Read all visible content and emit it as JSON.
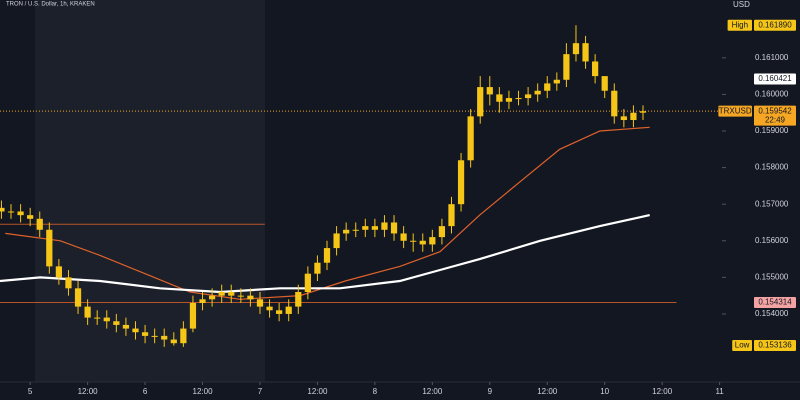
{
  "chart_data": {
    "type": "candlestick",
    "title": "TRON / U.S. Dollar, 1h, KRAKEN",
    "y_axis_label": "USD",
    "color": "#f5c518",
    "x": [
      -6,
      -4,
      -2,
      0,
      2,
      4,
      6,
      8,
      10,
      12,
      14,
      16,
      18,
      20,
      22,
      24,
      26,
      28,
      30,
      32,
      34,
      36,
      38,
      40,
      42,
      44,
      46,
      48,
      50,
      52,
      54,
      56,
      58,
      60,
      62,
      64,
      66,
      68,
      70,
      72,
      74,
      76,
      78,
      80,
      82,
      84,
      86,
      88,
      90,
      92,
      94,
      96,
      98,
      100,
      102,
      104,
      106,
      108,
      110,
      112,
      114,
      116,
      118,
      120,
      122,
      124,
      126,
      128
    ],
    "open": [
      0.1569,
      0.1568,
      0.1568,
      0.1567,
      0.1566,
      0.1563,
      0.1553,
      0.155,
      0.1547,
      0.1542,
      0.1539,
      0.1539,
      0.1538,
      0.1537,
      0.1536,
      0.1535,
      0.1534,
      0.1534,
      0.1533,
      0.1532,
      0.1536,
      0.1543,
      0.1544,
      0.1545,
      0.1546,
      0.1545,
      0.1545,
      0.1544,
      0.1542,
      0.1541,
      0.154,
      0.1542,
      0.1546,
      0.1551,
      0.1554,
      0.1558,
      0.1562,
      0.1563,
      0.1563,
      0.1564,
      0.1563,
      0.1565,
      0.1562,
      0.156,
      0.156,
      0.1559,
      0.1561,
      0.1564,
      0.157,
      0.1582,
      0.1594,
      0.1602,
      0.16,
      0.1598,
      0.1599,
      0.1599,
      0.16,
      0.1601,
      0.1603,
      0.1604,
      0.1611,
      0.1614,
      0.1609,
      0.1605,
      0.1601,
      0.1594,
      0.1593,
      0.1595
    ],
    "high": [
      0.1571,
      0.157,
      0.157,
      0.1569,
      0.1568,
      0.1565,
      0.1555,
      0.1552,
      0.1549,
      0.1544,
      0.1541,
      0.1541,
      0.154,
      0.1539,
      0.1538,
      0.1537,
      0.1536,
      0.1536,
      0.1535,
      0.1538,
      0.1545,
      0.1546,
      0.1547,
      0.1548,
      0.1548,
      0.1547,
      0.1547,
      0.1546,
      0.1544,
      0.1543,
      0.1544,
      0.1548,
      0.1553,
      0.1556,
      0.156,
      0.1564,
      0.1565,
      0.1565,
      0.1566,
      0.1566,
      0.1567,
      0.1567,
      0.1564,
      0.1562,
      0.1562,
      0.1563,
      0.1566,
      0.1572,
      0.1584,
      0.1596,
      0.1605,
      0.1605,
      0.1602,
      0.1601,
      0.1601,
      0.1602,
      0.1603,
      0.1605,
      0.1606,
      0.1614,
      0.16189,
      0.1616,
      0.1611,
      0.1604,
      0.1603,
      0.1596,
      0.1597,
      0.1597
    ],
    "low": [
      0.1566,
      0.1566,
      0.1565,
      0.1564,
      0.1561,
      0.1551,
      0.1548,
      0.1545,
      0.154,
      0.1537,
      0.1537,
      0.1536,
      0.1535,
      0.1534,
      0.1533,
      0.1532,
      0.1532,
      0.1531,
      0.153136,
      0.1531,
      0.1535,
      0.1541,
      0.1542,
      0.1543,
      0.1543,
      0.1543,
      0.1542,
      0.154,
      0.1539,
      0.1538,
      0.1538,
      0.154,
      0.1544,
      0.1549,
      0.1552,
      0.1556,
      0.156,
      0.1561,
      0.1561,
      0.1561,
      0.1561,
      0.156,
      0.1558,
      0.1557,
      0.1557,
      0.1557,
      0.1559,
      0.1562,
      0.1568,
      0.158,
      0.1592,
      0.1597,
      0.1595,
      0.1596,
      0.1597,
      0.1597,
      0.1598,
      0.1599,
      0.1601,
      0.1602,
      0.1609,
      0.1607,
      0.1603,
      0.1599,
      0.1592,
      0.1591,
      0.1591,
      0.1593
    ],
    "close": [
      0.1568,
      0.1568,
      0.1567,
      0.1566,
      0.1563,
      0.1553,
      0.155,
      0.1547,
      0.1542,
      0.1539,
      0.1539,
      0.1538,
      0.1537,
      0.1536,
      0.1535,
      0.1534,
      0.1534,
      0.1533,
      0.1532,
      0.1536,
      0.1543,
      0.1544,
      0.1545,
      0.1546,
      0.1545,
      0.1545,
      0.1544,
      0.1542,
      0.1541,
      0.154,
      0.1542,
      0.1546,
      0.1551,
      0.1554,
      0.1558,
      0.1562,
      0.1563,
      0.1563,
      0.1564,
      0.1563,
      0.1565,
      0.1562,
      0.156,
      0.156,
      0.1559,
      0.1561,
      0.1564,
      0.157,
      0.1582,
      0.1594,
      0.1602,
      0.16,
      0.1598,
      0.1599,
      0.1599,
      0.16,
      0.1601,
      0.1603,
      0.1604,
      0.1611,
      0.1614,
      0.1609,
      0.1605,
      0.1601,
      0.1594,
      0.1593,
      0.1595,
      0.15954
    ],
    "lines": [
      {
        "color": "#e0622a",
        "x": [
          -5.2,
          6.3,
          14.6,
          24,
          33.4,
          43.8,
          56.4,
          65.8,
          77.2,
          85.6,
          93.9,
          102.2,
          110.6,
          119,
          129.4
        ],
        "values": [
          0.1562,
          0.156,
          0.1556,
          0.1551,
          0.1546,
          0.1544,
          0.1545,
          0.1549,
          0.1553,
          0.1557,
          0.1567,
          0.1576,
          0.1585,
          0.159,
          0.1591
        ]
      },
      {
        "color": "#ffffff",
        "x": [
          -6.3,
          2.1,
          14.6,
          27.1,
          39.7,
          52.2,
          64.7,
          77.2,
          85.6,
          93.9,
          106.5,
          119,
          129.4
        ],
        "values": [
          0.1549,
          0.155,
          0.1549,
          0.1547,
          0.1546,
          0.1547,
          0.1547,
          0.1549,
          0.1552,
          0.1555,
          0.156,
          0.1564,
          0.1567
        ]
      }
    ],
    "levels": [
      {
        "value": 0.15645,
        "color": "#e0622a",
        "end": 49
      },
      {
        "value": 0.154314,
        "color": "#e0622a",
        "end": 135
      }
    ],
    "price_labels": [
      {
        "name": "High",
        "value": 0.16189,
        "label": "0.161890",
        "color": "#f5c518"
      },
      {
        "value": 0.160421,
        "label": "0.160421",
        "color": "#ffffff"
      },
      {
        "name": "TRXUSD",
        "value": 0.159542,
        "label": "0.159542",
        "time": "22:49",
        "color": "#f5a623"
      },
      {
        "value": 0.154314,
        "label": "0.154314",
        "color": "#f4a3a3"
      },
      {
        "name": "Low",
        "value": 0.153136,
        "label": "0.153136",
        "color": "#f5c518"
      }
    ],
    "xlim": [
      -6.3,
      144.5
    ],
    "ylim": [
      0.15214,
      0.16258
    ],
    "xticks": [
      {
        "value": 0,
        "label": "5"
      },
      {
        "value": 12,
        "label": "12:00"
      },
      {
        "value": 24,
        "label": "6"
      },
      {
        "value": 36,
        "label": "12:00"
      },
      {
        "value": 48,
        "label": "7"
      },
      {
        "value": 60,
        "label": "12:00"
      },
      {
        "value": 72,
        "label": "8"
      },
      {
        "value": 84,
        "label": "12:00"
      },
      {
        "value": 96,
        "label": "9"
      },
      {
        "value": 108,
        "label": "12:00"
      },
      {
        "value": 120,
        "label": "10"
      },
      {
        "value": 132,
        "label": "12:00"
      },
      {
        "value": 144,
        "label": "11"
      }
    ],
    "yticks": [
      {
        "value": 0.154,
        "label": "0.154000"
      },
      {
        "value": 0.155,
        "label": "0.155000"
      },
      {
        "value": 0.156,
        "label": "0.156000"
      },
      {
        "value": 0.157,
        "label": "0.157000"
      },
      {
        "value": 0.158,
        "label": "0.158000"
      },
      {
        "value": 0.159,
        "label": "0.159000"
      },
      {
        "value": 0.16,
        "label": "0.160000"
      },
      {
        "value": 0.161,
        "label": "0.161000"
      }
    ],
    "grid": false
  }
}
